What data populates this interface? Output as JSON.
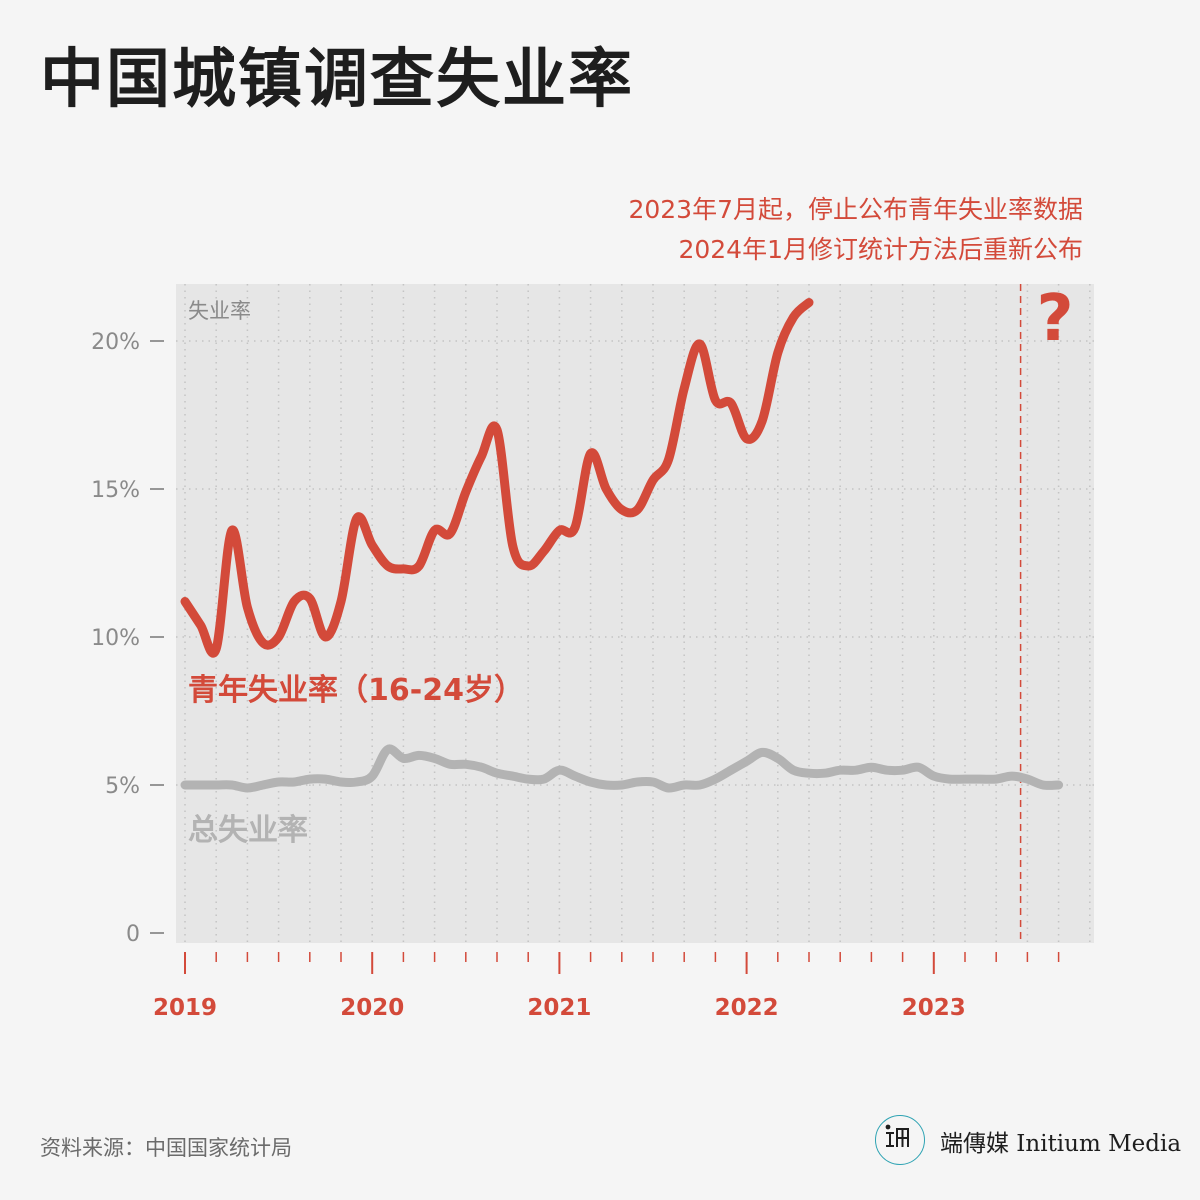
{
  "title": "中国城镇调查失业率",
  "notes": [
    "2023年7月起，停止公布青年失业率数据",
    "2024年1月修订统计方法后重新公布"
  ],
  "source": "资料来源：中国国家统计局",
  "brand": "端傳媒 Initium Media",
  "colors": {
    "youth": "#d34a3a",
    "total": "#b3b3b3",
    "plot_bg": "#e6e6e6",
    "page_bg": "#f5f5f5",
    "title": "#1e1e1e"
  },
  "chart_data": {
    "type": "line",
    "ylabel": "失业率",
    "yticks": [
      "0",
      "5%",
      "10%",
      "15%",
      "20%"
    ],
    "ylim": [
      0,
      22
    ],
    "xticks": [
      "2019",
      "2020",
      "2021",
      "2022",
      "2023"
    ],
    "x": [
      "2019-01",
      "2019-02",
      "2019-03",
      "2019-04",
      "2019-05",
      "2019-06",
      "2019-07",
      "2019-08",
      "2019-09",
      "2019-10",
      "2019-11",
      "2019-12",
      "2020-01",
      "2020-02",
      "2020-03",
      "2020-04",
      "2020-05",
      "2020-06",
      "2020-07",
      "2020-08",
      "2020-09",
      "2020-10",
      "2020-11",
      "2020-12",
      "2021-01",
      "2021-02",
      "2021-03",
      "2021-04",
      "2021-05",
      "2021-06",
      "2021-07",
      "2021-08",
      "2021-09",
      "2021-10",
      "2021-11",
      "2021-12",
      "2022-01",
      "2022-02",
      "2022-03",
      "2022-04",
      "2022-05",
      "2022-06",
      "2022-07",
      "2022-08",
      "2022-09",
      "2022-10",
      "2022-11",
      "2022-12",
      "2023-01",
      "2023-02",
      "2023-03",
      "2023-04",
      "2023-05",
      "2023-06",
      "2023-07",
      "2023-08",
      "2023-09"
    ],
    "series": [
      {
        "name": "青年失业率（16-24岁）",
        "values": [
          11.2,
          10.4,
          9.6,
          13.6,
          11.0,
          9.8,
          10.0,
          11.2,
          11.3,
          10.0,
          11.2,
          14.0,
          13.1,
          12.4,
          12.3,
          12.4,
          13.6,
          13.5,
          14.9,
          16.1,
          17.0,
          13.1,
          12.4,
          12.9,
          13.6,
          13.7,
          16.2,
          15.0,
          14.3,
          14.3,
          15.3,
          16.0,
          18.4,
          19.9,
          18.0,
          17.9,
          16.7,
          17.3,
          19.6,
          20.8,
          21.3,
          null,
          null,
          null,
          null,
          null,
          null,
          null,
          null,
          null,
          null,
          null,
          null,
          null,
          null,
          null,
          null
        ]
      },
      {
        "name": "总失业率",
        "values": [
          5.0,
          5.0,
          5.0,
          5.0,
          4.9,
          5.0,
          5.1,
          5.1,
          5.2,
          5.2,
          5.1,
          5.1,
          5.3,
          6.2,
          5.9,
          6.0,
          5.9,
          5.7,
          5.7,
          5.6,
          5.4,
          5.3,
          5.2,
          5.2,
          5.5,
          5.3,
          5.1,
          5.0,
          5.0,
          5.1,
          5.1,
          4.9,
          5.0,
          5.0,
          5.2,
          5.5,
          5.8,
          6.1,
          5.9,
          5.5,
          5.4,
          5.4,
          5.5,
          5.5,
          5.6,
          5.5,
          5.5,
          5.6,
          5.3,
          5.2,
          5.2,
          5.2,
          5.2,
          5.3,
          5.2,
          5.0,
          5.0
        ]
      }
    ],
    "cutoff_x": "2023-07",
    "cutoff_label": "?",
    "grid": true
  }
}
